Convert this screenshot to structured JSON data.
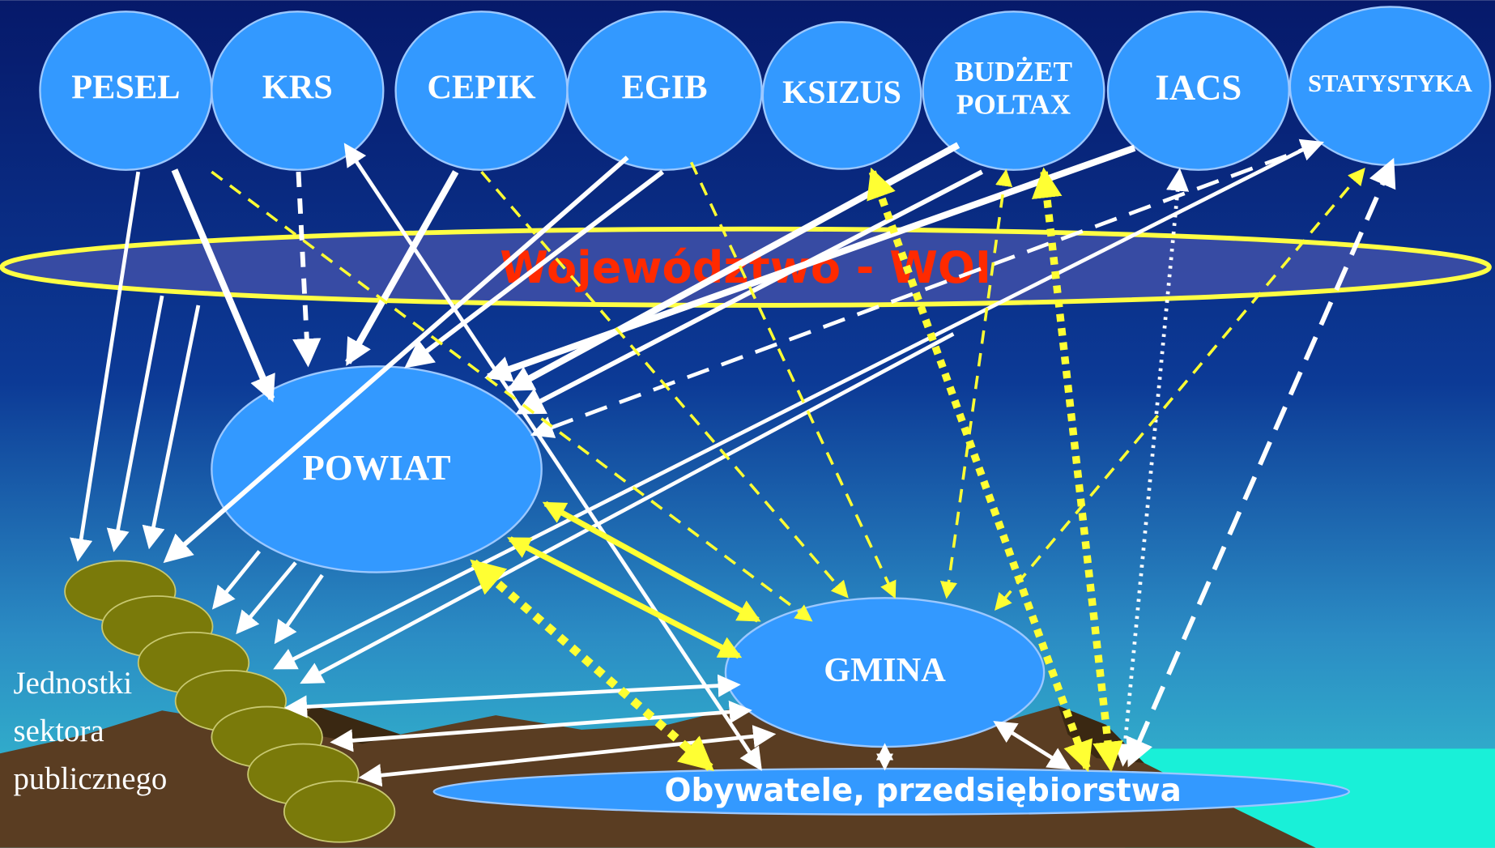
{
  "registers": [
    [
      "PESEL"
    ],
    [
      "KRS"
    ],
    [
      "CEPIK"
    ],
    [
      "EGIB"
    ],
    [
      "KSIZUS"
    ],
    [
      "BUDŻET",
      "POLTAX"
    ],
    [
      "IACS"
    ],
    [
      "STATYSTYKA"
    ]
  ],
  "voivodeship": "Województwo - WOI",
  "powiat": "POWIAT",
  "gmina": "GMINA",
  "citizens": "Obywatele, przedsiębiorstwa",
  "public_units": [
    "Jednostki",
    "sektora",
    "publicznego"
  ]
}
